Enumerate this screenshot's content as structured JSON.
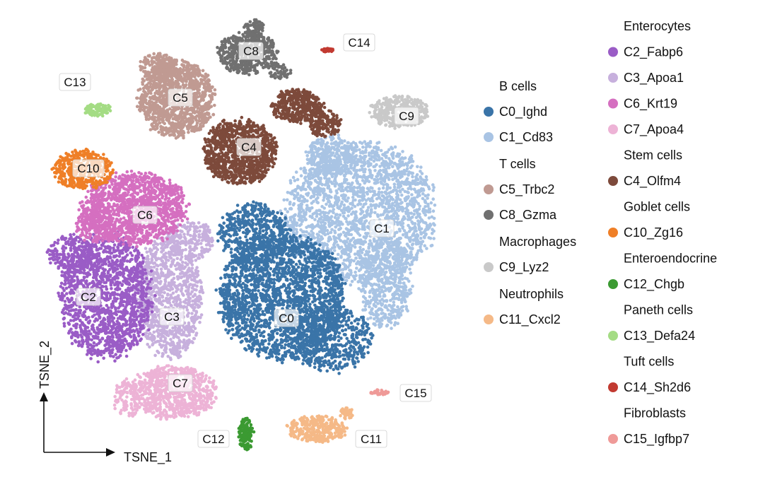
{
  "chart_data": {
    "type": "scatter",
    "title": "",
    "xlabel": "TSNE_1",
    "ylabel": "TSNE_2",
    "grid": false,
    "legend_position": "right",
    "clusters": [
      {
        "id": "C0",
        "name": "C0_Ighd",
        "group": "B cells",
        "color": "#3a74a8"
      },
      {
        "id": "C1",
        "name": "C1_Cd83",
        "group": "B cells",
        "color": "#a9c4e4"
      },
      {
        "id": "C2",
        "name": "C2_Fabp6",
        "group": "Enterocytes",
        "color": "#9a5cc6"
      },
      {
        "id": "C3",
        "name": "C3_Apoa1",
        "group": "Enterocytes",
        "color": "#c7b0dd"
      },
      {
        "id": "C4",
        "name": "C4_Olfm4",
        "group": "Stem cells",
        "color": "#7d4a3b"
      },
      {
        "id": "C5",
        "name": "C5_Trbc2",
        "group": "T cells",
        "color": "#c09a92"
      },
      {
        "id": "C6",
        "name": "C6_Krt19",
        "group": "Enterocytes",
        "color": "#d56fc0"
      },
      {
        "id": "C7",
        "name": "C7_Apoa4",
        "group": "Enterocytes",
        "color": "#edb3d6"
      },
      {
        "id": "C8",
        "name": "C8_Gzma",
        "group": "T cells",
        "color": "#707070"
      },
      {
        "id": "C9",
        "name": "C9_Lyz2",
        "group": "Macrophages",
        "color": "#c9c9c9"
      },
      {
        "id": "C10",
        "name": "C10_Zg16",
        "group": "Goblet cells",
        "color": "#ef7f27"
      },
      {
        "id": "C11",
        "name": "C11_Cxcl2",
        "group": "Neutrophils",
        "color": "#f5b987"
      },
      {
        "id": "C12",
        "name": "C12_Chgb",
        "group": "Enteroendocrine",
        "color": "#3b9a32"
      },
      {
        "id": "C13",
        "name": "C13_Defa24",
        "group": "Paneth cells",
        "color": "#a4dc84"
      },
      {
        "id": "C14",
        "name": "C14_Sh2d6",
        "group": "Tuft cells",
        "color": "#c23a31"
      },
      {
        "id": "C15",
        "name": "C15_Igfbp7",
        "group": "Fibroblasts",
        "color": "#ef9a98"
      }
    ],
    "legend": {
      "column_1": [
        {
          "header": "B cells",
          "items": [
            "C0",
            "C1"
          ]
        },
        {
          "header": "T cells",
          "items": [
            "C5",
            "C8"
          ]
        },
        {
          "header": "Macrophages",
          "items": [
            "C9"
          ]
        },
        {
          "header": "Neutrophils",
          "items": [
            "C11"
          ]
        }
      ],
      "column_2": [
        {
          "header": "Enterocytes",
          "items": [
            "C2",
            "C3",
            "C6",
            "C7"
          ]
        },
        {
          "header": "Stem cells",
          "items": [
            "C4"
          ]
        },
        {
          "header": "Goblet cells",
          "items": [
            "C10"
          ]
        },
        {
          "header": "Enteroendocrine",
          "items": [
            "C12"
          ]
        },
        {
          "header": "Paneth cells",
          "items": [
            "C13"
          ]
        },
        {
          "header": "Tuft cells",
          "items": [
            "C14"
          ]
        },
        {
          "header": "Fibroblasts",
          "items": [
            "C15"
          ]
        }
      ]
    }
  }
}
